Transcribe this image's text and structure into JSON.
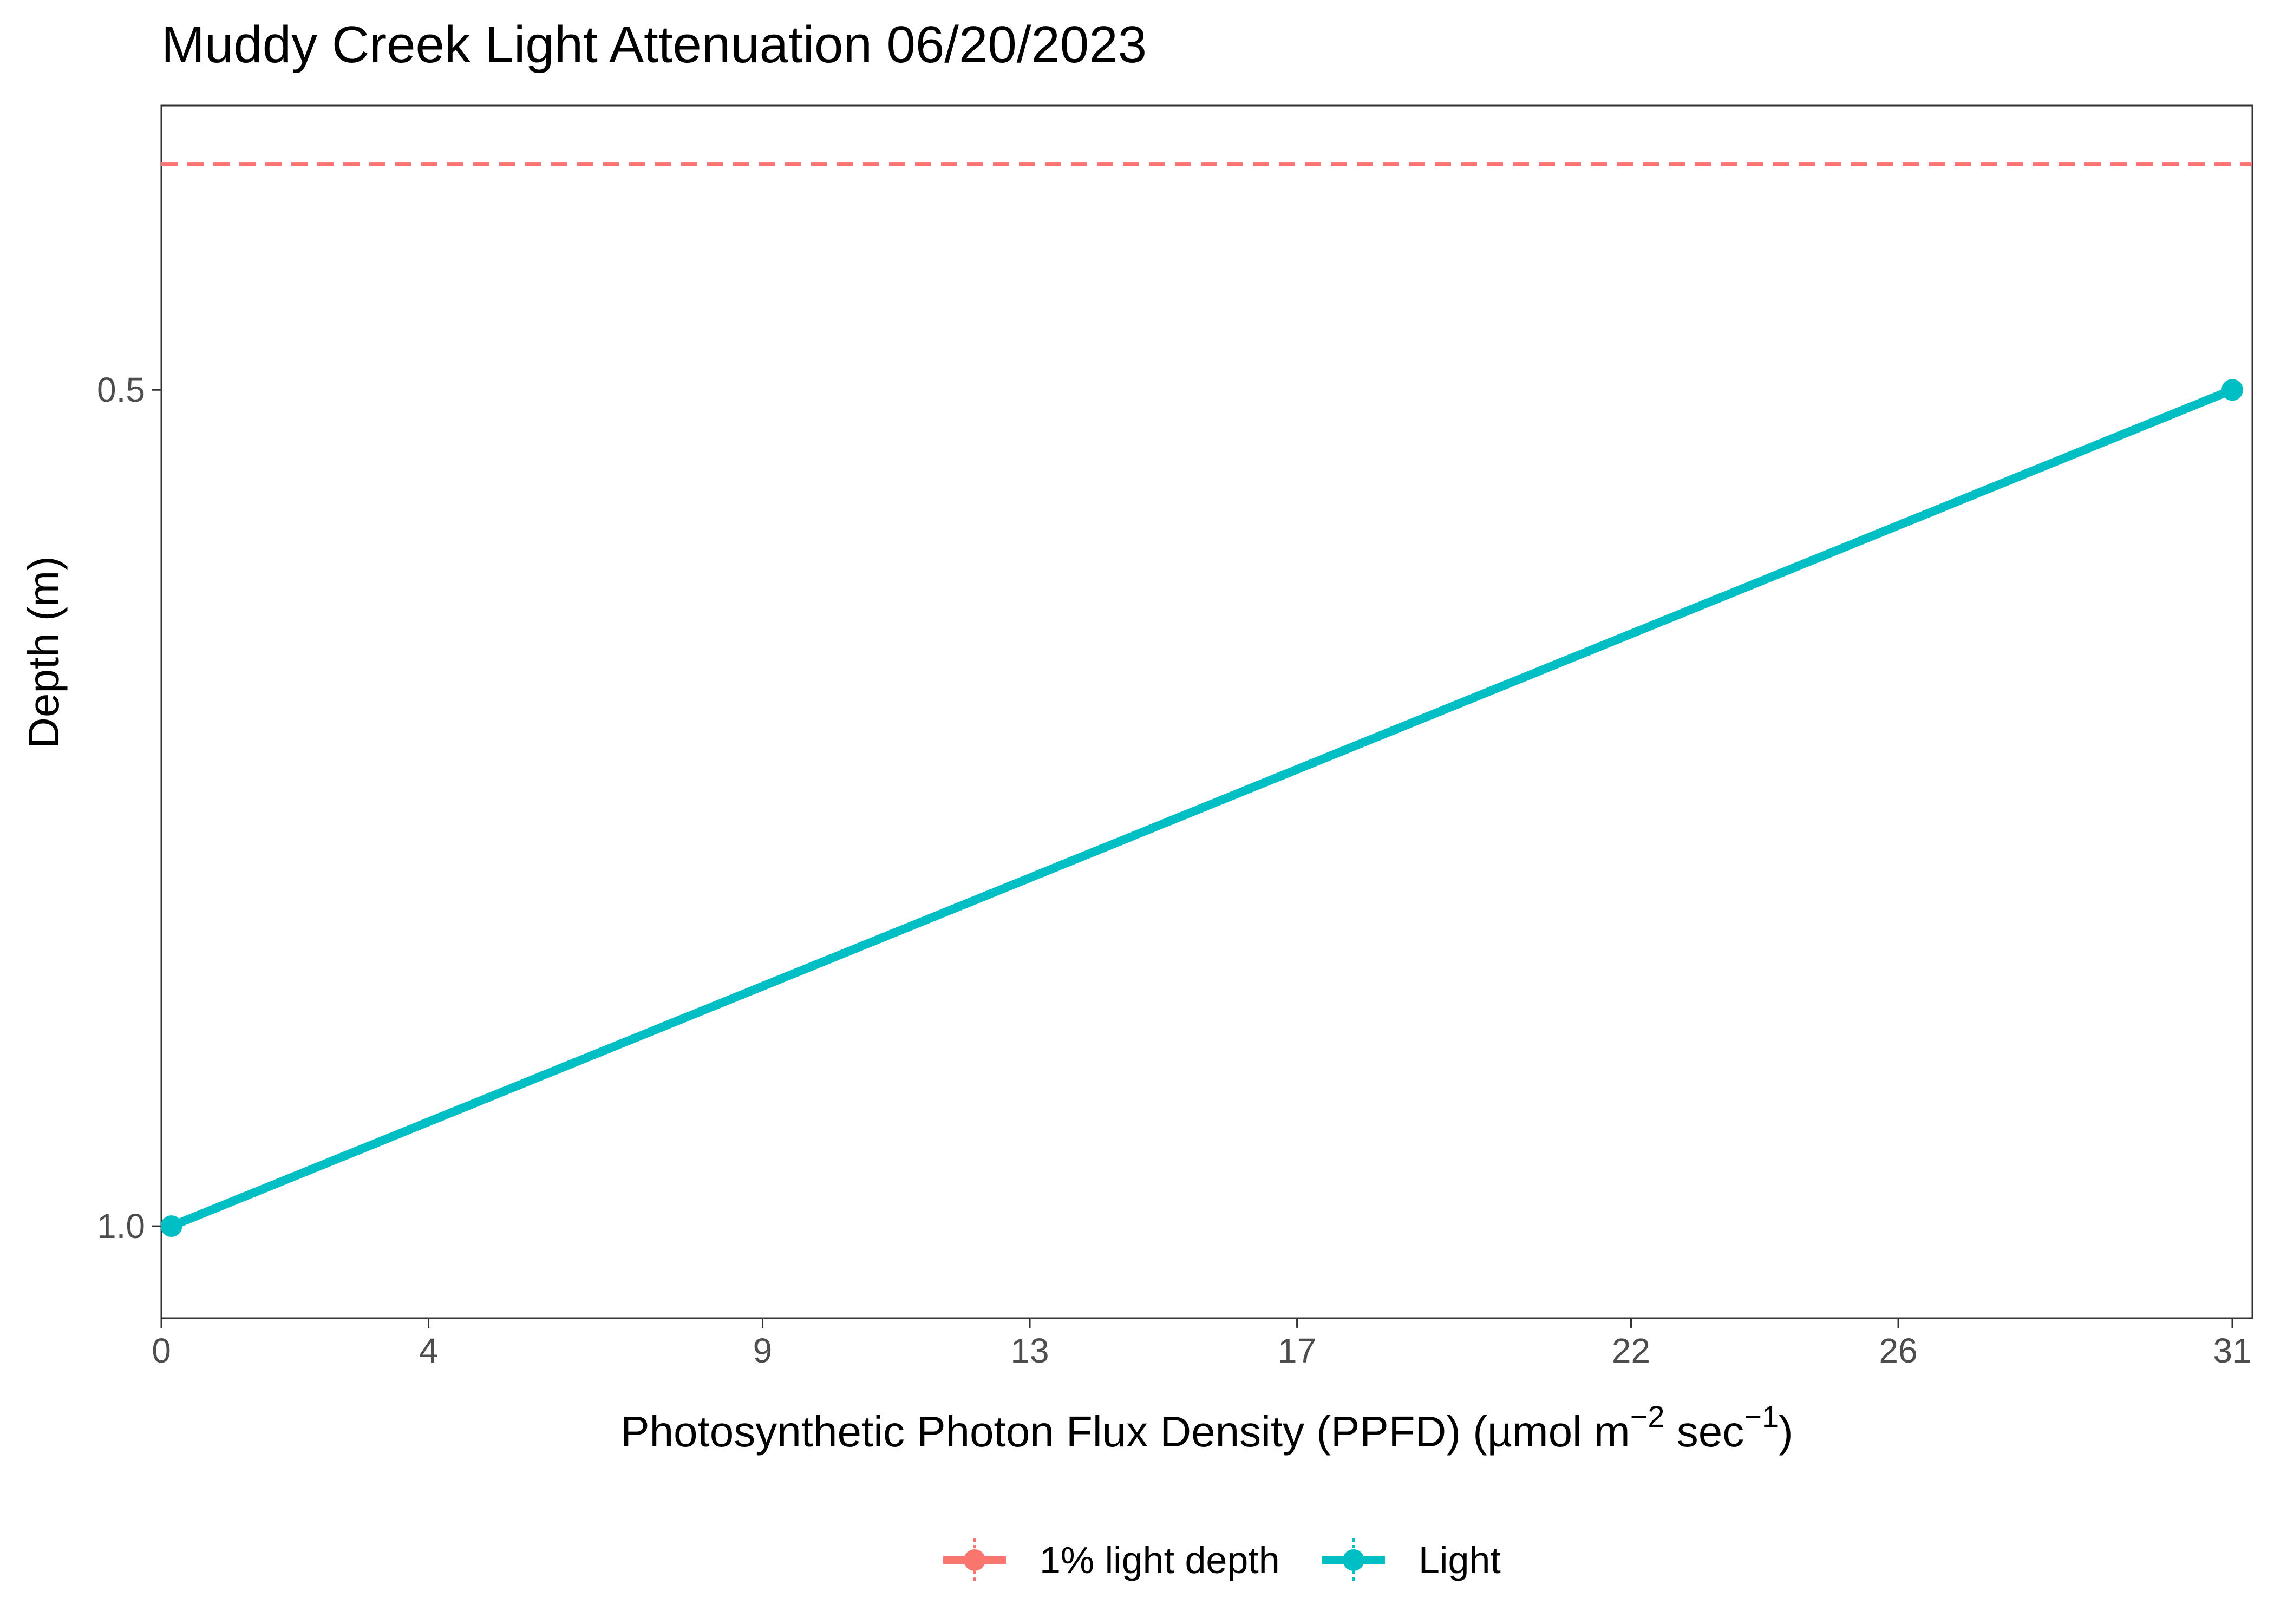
{
  "chart_data": {
    "type": "line",
    "title": "Muddy Creek Light Attenuation 06/20/2023",
    "xlabel_main": "Photosynthetic Photon Flux Density (PPFD) (µmol m",
    "xlabel_sup1": "−2",
    "xlabel_mid": " sec",
    "xlabel_sup2": "−1",
    "xlabel_end": ")",
    "ylabel": "Depth (m)",
    "xlim": [
      0,
      31.3
    ],
    "ylim": [
      1.055,
      0.33
    ],
    "y_reversed": true,
    "x_ticks": [
      0,
      4,
      9,
      13,
      17,
      22,
      26,
      31
    ],
    "x_tick_labels": [
      "0",
      "4",
      "9",
      "13",
      "17",
      "22",
      "26",
      "31"
    ],
    "y_ticks": [
      0.5,
      1.0
    ],
    "y_tick_labels": [
      "0.5",
      "1.0"
    ],
    "grid": false,
    "legend_position": "bottom",
    "series": [
      {
        "name": "Light",
        "color": "#00bfc4",
        "style": "solid",
        "markers": true,
        "points": [
          {
            "x": 0.15,
            "y": 1.0
          },
          {
            "x": 31.0,
            "y": 0.5
          }
        ]
      },
      {
        "name": "1% light depth",
        "color": "#f8766d",
        "style": "dashed",
        "markers": false,
        "y": 0.365
      }
    ],
    "legend": [
      {
        "label": "1% light depth",
        "color": "#f8766d"
      },
      {
        "label": "Light",
        "color": "#00bfc4"
      }
    ]
  }
}
